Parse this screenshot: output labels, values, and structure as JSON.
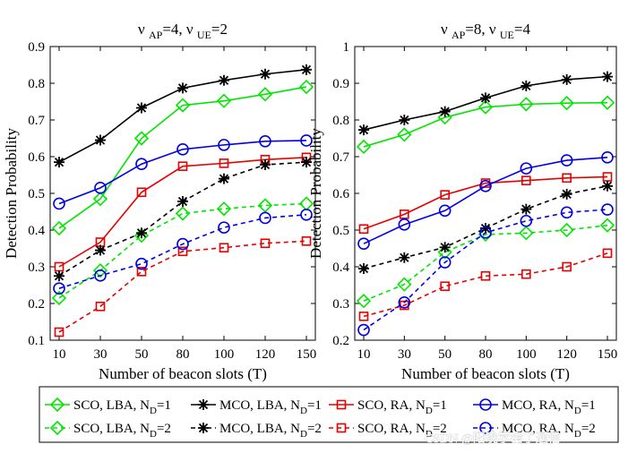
{
  "chart_data": [
    {
      "type": "line",
      "title": "ν_AP=4, ν_UE=2",
      "title_parts": {
        "nu1": "ν",
        "ap": "AP",
        "mid": "=4, ",
        "nu2": "ν",
        "ue": "UE",
        "end": "=2"
      },
      "xlabel": "Number of beacon slots (T)",
      "ylabel": "Detection Probability",
      "x": [
        10,
        30,
        50,
        80,
        100,
        120,
        150
      ],
      "x_tick_labels": [
        "10",
        "30",
        "50",
        "80",
        "100",
        "120",
        "150"
      ],
      "ylim": [
        0.1,
        0.9
      ],
      "y_ticks": [
        0.1,
        0.2,
        0.3,
        0.4,
        0.5,
        0.6,
        0.7,
        0.8,
        0.9
      ],
      "y_tick_labels": [
        "0.1",
        "0.2",
        "0.3",
        "0.4",
        "0.5",
        "0.6",
        "0.7",
        "0.8",
        "0.9"
      ],
      "series": [
        {
          "name": "SCO, LBA, N_D=1",
          "color": "#00e600",
          "marker": "diamond",
          "dash": "solid",
          "values": [
            0.405,
            0.485,
            0.65,
            0.74,
            0.752,
            0.77,
            0.79
          ]
        },
        {
          "name": "MCO, LBA, N_D=1",
          "color": "#000000",
          "marker": "star",
          "dash": "solid",
          "values": [
            0.585,
            0.645,
            0.733,
            0.787,
            0.808,
            0.825,
            0.837
          ]
        },
        {
          "name": "SCO, RA, N_D=1",
          "color": "#e60000",
          "marker": "square",
          "dash": "solid",
          "values": [
            0.3,
            0.367,
            0.503,
            0.574,
            0.582,
            0.592,
            0.598
          ]
        },
        {
          "name": "MCO, RA, N_D=1",
          "color": "#0000e6",
          "marker": "circle",
          "dash": "solid",
          "values": [
            0.472,
            0.515,
            0.58,
            0.62,
            0.632,
            0.642,
            0.644
          ]
        },
        {
          "name": "SCO, LBA, N_D=2",
          "color": "#00e600",
          "marker": "diamond",
          "dash": "dashed",
          "values": [
            0.215,
            0.29,
            0.385,
            0.445,
            0.458,
            0.467,
            0.472
          ]
        },
        {
          "name": "MCO, LBA, N_D=2",
          "color": "#000000",
          "marker": "star",
          "dash": "dashed",
          "values": [
            0.275,
            0.345,
            0.392,
            0.478,
            0.54,
            0.578,
            0.585
          ]
        },
        {
          "name": "SCO, RA, N_D=2",
          "color": "#e60000",
          "marker": "square",
          "dash": "dashed",
          "values": [
            0.122,
            0.192,
            0.287,
            0.342,
            0.352,
            0.364,
            0.37
          ]
        },
        {
          "name": "MCO, RA, N_D=2",
          "color": "#0000e6",
          "marker": "circle",
          "dash": "dashed",
          "values": [
            0.241,
            0.276,
            0.308,
            0.362,
            0.407,
            0.433,
            0.442
          ]
        }
      ]
    },
    {
      "type": "line",
      "title": "ν_AP=8, ν_UE=4",
      "title_parts": {
        "nu1": "ν",
        "ap": "AP",
        "mid": "=8, ",
        "nu2": "ν",
        "ue": "UE",
        "end": "=4"
      },
      "xlabel": "Number of beacon slots (T)",
      "ylabel": "Detection Probability",
      "x": [
        10,
        30,
        50,
        80,
        100,
        120,
        150
      ],
      "x_tick_labels": [
        "10",
        "30",
        "50",
        "80",
        "100",
        "120",
        "150"
      ],
      "ylim": [
        0.2,
        1.0
      ],
      "y_ticks": [
        0.2,
        0.3,
        0.4,
        0.5,
        0.6,
        0.7,
        0.8,
        0.9,
        1.0
      ],
      "y_tick_labels": [
        "0.2",
        "0.3",
        "0.4",
        "0.5",
        "0.6",
        "0.7",
        "0.8",
        "0.9",
        "1"
      ],
      "series": [
        {
          "name": "SCO, LBA, N_D=1",
          "color": "#00e600",
          "marker": "diamond",
          "dash": "solid",
          "values": [
            0.727,
            0.76,
            0.807,
            0.835,
            0.843,
            0.846,
            0.847
          ]
        },
        {
          "name": "MCO, LBA, N_D=1",
          "color": "#000000",
          "marker": "star",
          "dash": "solid",
          "values": [
            0.773,
            0.8,
            0.823,
            0.86,
            0.893,
            0.91,
            0.918
          ]
        },
        {
          "name": "SCO, RA, N_D=1",
          "color": "#e60000",
          "marker": "square",
          "dash": "solid",
          "values": [
            0.503,
            0.543,
            0.596,
            0.628,
            0.635,
            0.642,
            0.645
          ]
        },
        {
          "name": "MCO, RA, N_D=1",
          "color": "#0000e6",
          "marker": "circle",
          "dash": "solid",
          "values": [
            0.463,
            0.515,
            0.553,
            0.62,
            0.668,
            0.69,
            0.698
          ]
        },
        {
          "name": "SCO, LBA, N_D=2",
          "color": "#00e600",
          "marker": "diamond",
          "dash": "dashed",
          "values": [
            0.307,
            0.352,
            0.44,
            0.488,
            0.492,
            0.5,
            0.513
          ]
        },
        {
          "name": "MCO, LBA, N_D=2",
          "color": "#000000",
          "marker": "star",
          "dash": "dashed",
          "values": [
            0.395,
            0.425,
            0.453,
            0.505,
            0.557,
            0.598,
            0.62
          ]
        },
        {
          "name": "SCO, RA, N_D=2",
          "color": "#e60000",
          "marker": "square",
          "dash": "dashed",
          "values": [
            0.265,
            0.295,
            0.347,
            0.375,
            0.38,
            0.4,
            0.437
          ]
        },
        {
          "name": "MCO, RA, N_D=2",
          "color": "#0000e6",
          "marker": "circle",
          "dash": "dashed",
          "values": [
            0.228,
            0.303,
            0.412,
            0.493,
            0.525,
            0.548,
            0.556
          ]
        }
      ]
    }
  ],
  "legend": {
    "placement": "bottom",
    "entries": [
      {
        "base": "SCO, LBA, N",
        "sub": "D",
        "tail": "=1"
      },
      {
        "base": "MCO, LBA, N",
        "sub": "D",
        "tail": "=1"
      },
      {
        "base": "SCO, RA, N",
        "sub": "D",
        "tail": "=1"
      },
      {
        "base": "MCO, RA, N",
        "sub": "D",
        "tail": "=1"
      },
      {
        "base": "SCO, LBA, N",
        "sub": "D",
        "tail": "=2"
      },
      {
        "base": "MCO, LBA, N",
        "sub": "D",
        "tail": "=2"
      },
      {
        "base": "SCO, RA, N",
        "sub": "D",
        "tail": "=2"
      },
      {
        "base": "MCO, RA, N",
        "sub": "D",
        "tail": "=2"
      }
    ]
  },
  "watermark": "CSDN @阳晚学会了通信"
}
